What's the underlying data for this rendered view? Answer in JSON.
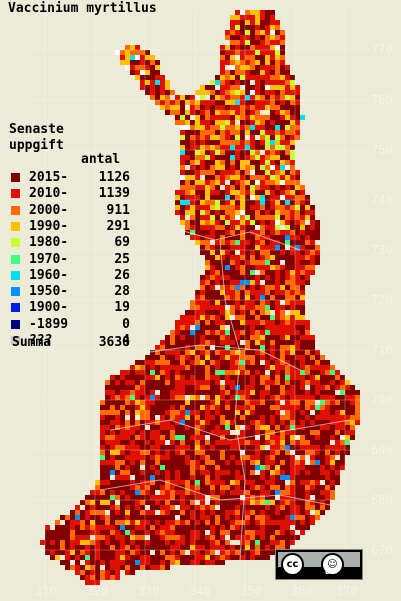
{
  "title": "Vaccinium myrtillus",
  "legend": {
    "heading_line1": "Senaste",
    "heading_line2": "uppgift",
    "count_header": "antal",
    "items": [
      {
        "label": "2015-",
        "count": "1126",
        "color": "#800000"
      },
      {
        "label": "2010-",
        "count": "1139",
        "color": "#e01000"
      },
      {
        "label": "2000-",
        "count": "911",
        "color": "#ff6a00"
      },
      {
        "label": "1990-",
        "count": "291",
        "color": "#ffc000"
      },
      {
        "label": "1980-",
        "count": "69",
        "color": "#c8ff30"
      },
      {
        "label": "1970-",
        "count": "25",
        "color": "#40ff80"
      },
      {
        "label": "1960-",
        "count": "26",
        "color": "#00e0f0"
      },
      {
        "label": "1950-",
        "count": "28",
        "color": "#0090ff"
      },
      {
        "label": "1900-",
        "count": "19",
        "color": "#0020e0"
      },
      {
        "label": "-1899",
        "count": "0",
        "color": "#000080"
      },
      {
        "label": "???",
        "count": "4",
        "color": "#c8c8c8"
      }
    ],
    "total_label": "Summa",
    "total_value": "3638"
  },
  "axis": {
    "x_ticks": [
      "310",
      "320",
      "330",
      "340",
      "350",
      "360",
      "370"
    ],
    "y_ticks": [
      "770",
      "760",
      "750",
      "740",
      "730",
      "720",
      "710",
      "700",
      "690",
      "680",
      "670"
    ]
  },
  "license": {
    "cc": "cc",
    "by": "BY"
  }
}
